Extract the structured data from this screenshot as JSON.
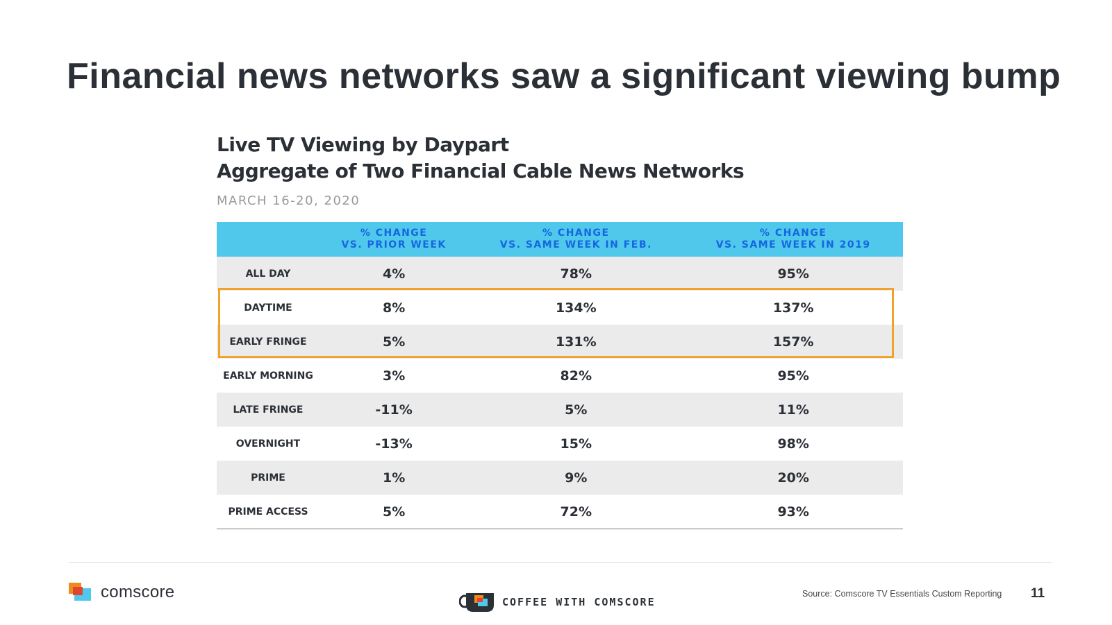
{
  "slide": {
    "title": "Financial news networks saw a significant viewing bump"
  },
  "chart": {
    "title_line1": "Live TV Viewing by Daypart",
    "title_line2": "Aggregate of Two Financial Cable News Networks",
    "date_range": "MARCH 16-20, 2020"
  },
  "table": {
    "headers": [
      {
        "line1": "% CHANGE",
        "line2": "VS. PRIOR WEEK"
      },
      {
        "line1": "% CHANGE",
        "line2": "VS. SAME WEEK IN FEB."
      },
      {
        "line1": "% CHANGE",
        "line2": "VS. SAME WEEK IN 2019"
      }
    ],
    "rows": [
      {
        "label": "ALL DAY",
        "prior_week": "4%",
        "feb": "78%",
        "y2019": "95%"
      },
      {
        "label": "DAYTIME",
        "prior_week": "8%",
        "feb": "134%",
        "y2019": "137%"
      },
      {
        "label": "EARLY FRINGE",
        "prior_week": "5%",
        "feb": "131%",
        "y2019": "157%"
      },
      {
        "label": "EARLY MORNING",
        "prior_week": "3%",
        "feb": "82%",
        "y2019": "95%"
      },
      {
        "label": "LATE FRINGE",
        "prior_week": "-11%",
        "feb": "5%",
        "y2019": "11%"
      },
      {
        "label": "OVERNIGHT",
        "prior_week": "-13%",
        "feb": "15%",
        "y2019": "98%"
      },
      {
        "label": "PRIME",
        "prior_week": "1%",
        "feb": "9%",
        "y2019": "20%"
      },
      {
        "label": "PRIME ACCESS",
        "prior_week": "5%",
        "feb": "72%",
        "y2019": "93%"
      }
    ],
    "highlight_color": "#f2a22a",
    "header_bg": "#4fc8ec",
    "header_text_color": "#1566e0"
  },
  "footer": {
    "brand": "comscore",
    "brand_icon": "comscore-logo-icon",
    "coffee_icon": "coffee-cup-icon",
    "coffee_label": "COFFEE WITH COMSCORE",
    "source": "Source: Comscore TV Essentials Custom Reporting",
    "page_number": "11"
  }
}
